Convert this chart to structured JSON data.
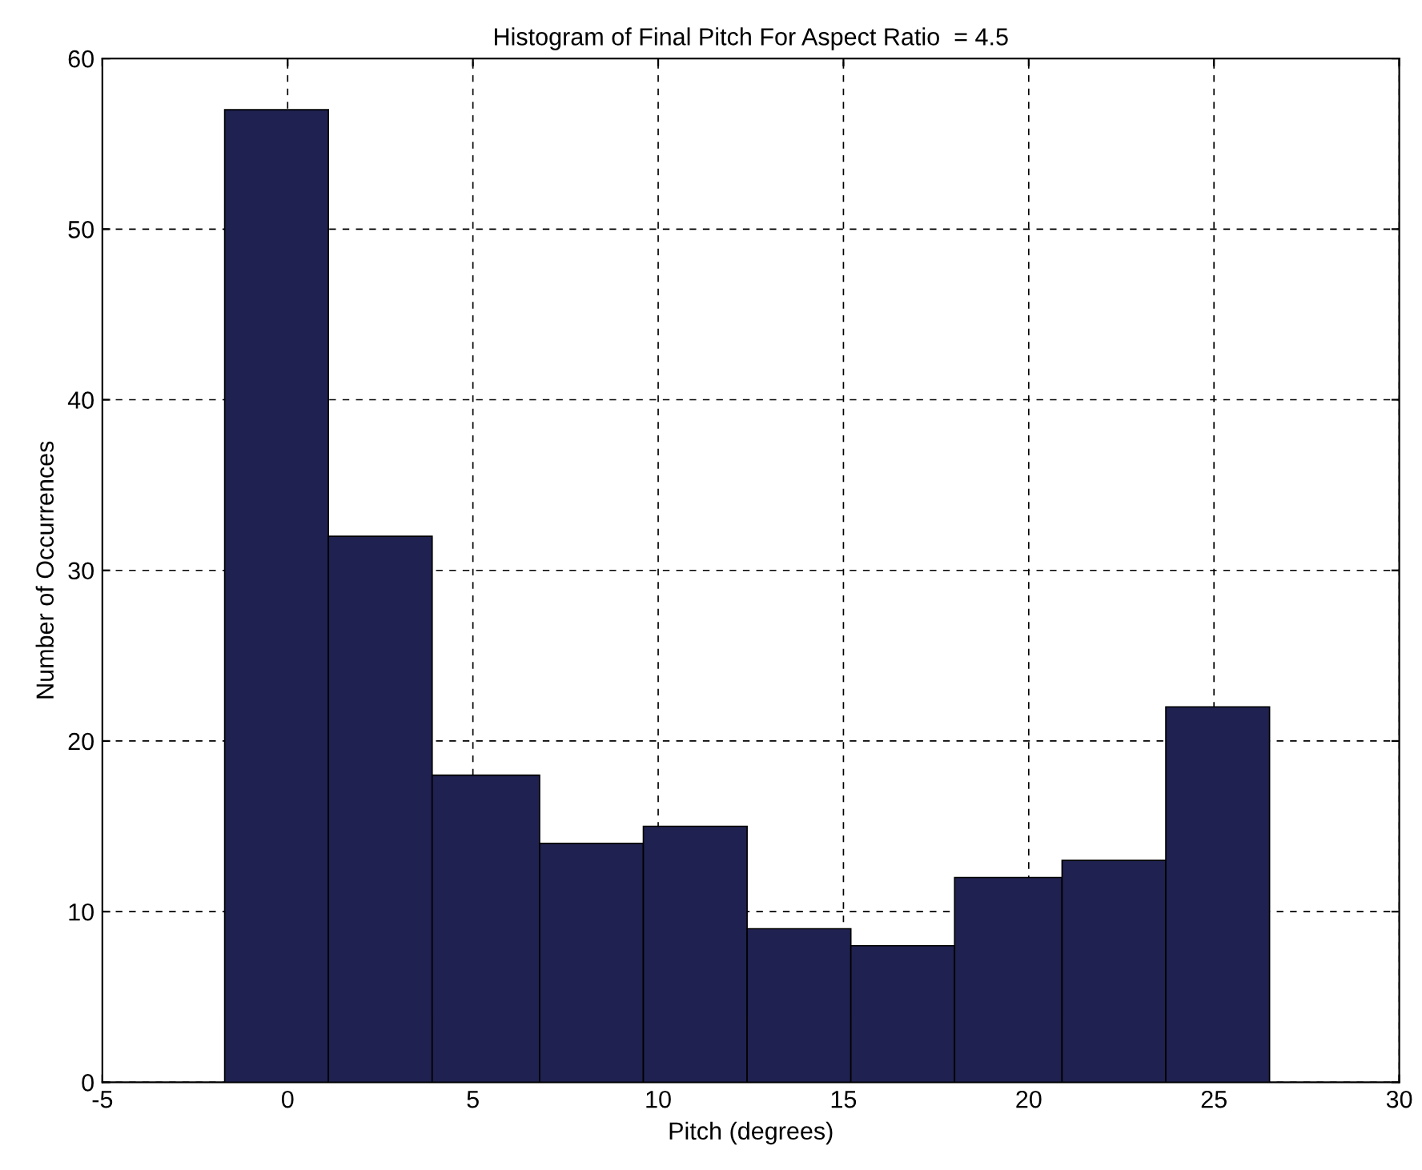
{
  "chart_data": {
    "type": "histogram",
    "title": "Histogram of Final Pitch For Aspect Ratio  = 4.5",
    "xlabel": "Pitch (degrees)",
    "ylabel": "Number of Occurrences",
    "bins": [
      -1.7,
      1.1,
      3.9,
      6.8,
      9.6,
      12.4,
      15.2,
      18.0,
      20.9,
      23.7,
      26.5
    ],
    "values": [
      57,
      32,
      18,
      14,
      15,
      9,
      8,
      12,
      13,
      22
    ],
    "color": "#1f2150",
    "xlim": [
      -5,
      30
    ],
    "xticks": [
      -5,
      0,
      5,
      10,
      15,
      20,
      25,
      30
    ],
    "ylim": [
      0,
      60
    ],
    "yticks": [
      0,
      10,
      20,
      30,
      40,
      50,
      60
    ],
    "grid": true,
    "line_style": "dashed"
  }
}
